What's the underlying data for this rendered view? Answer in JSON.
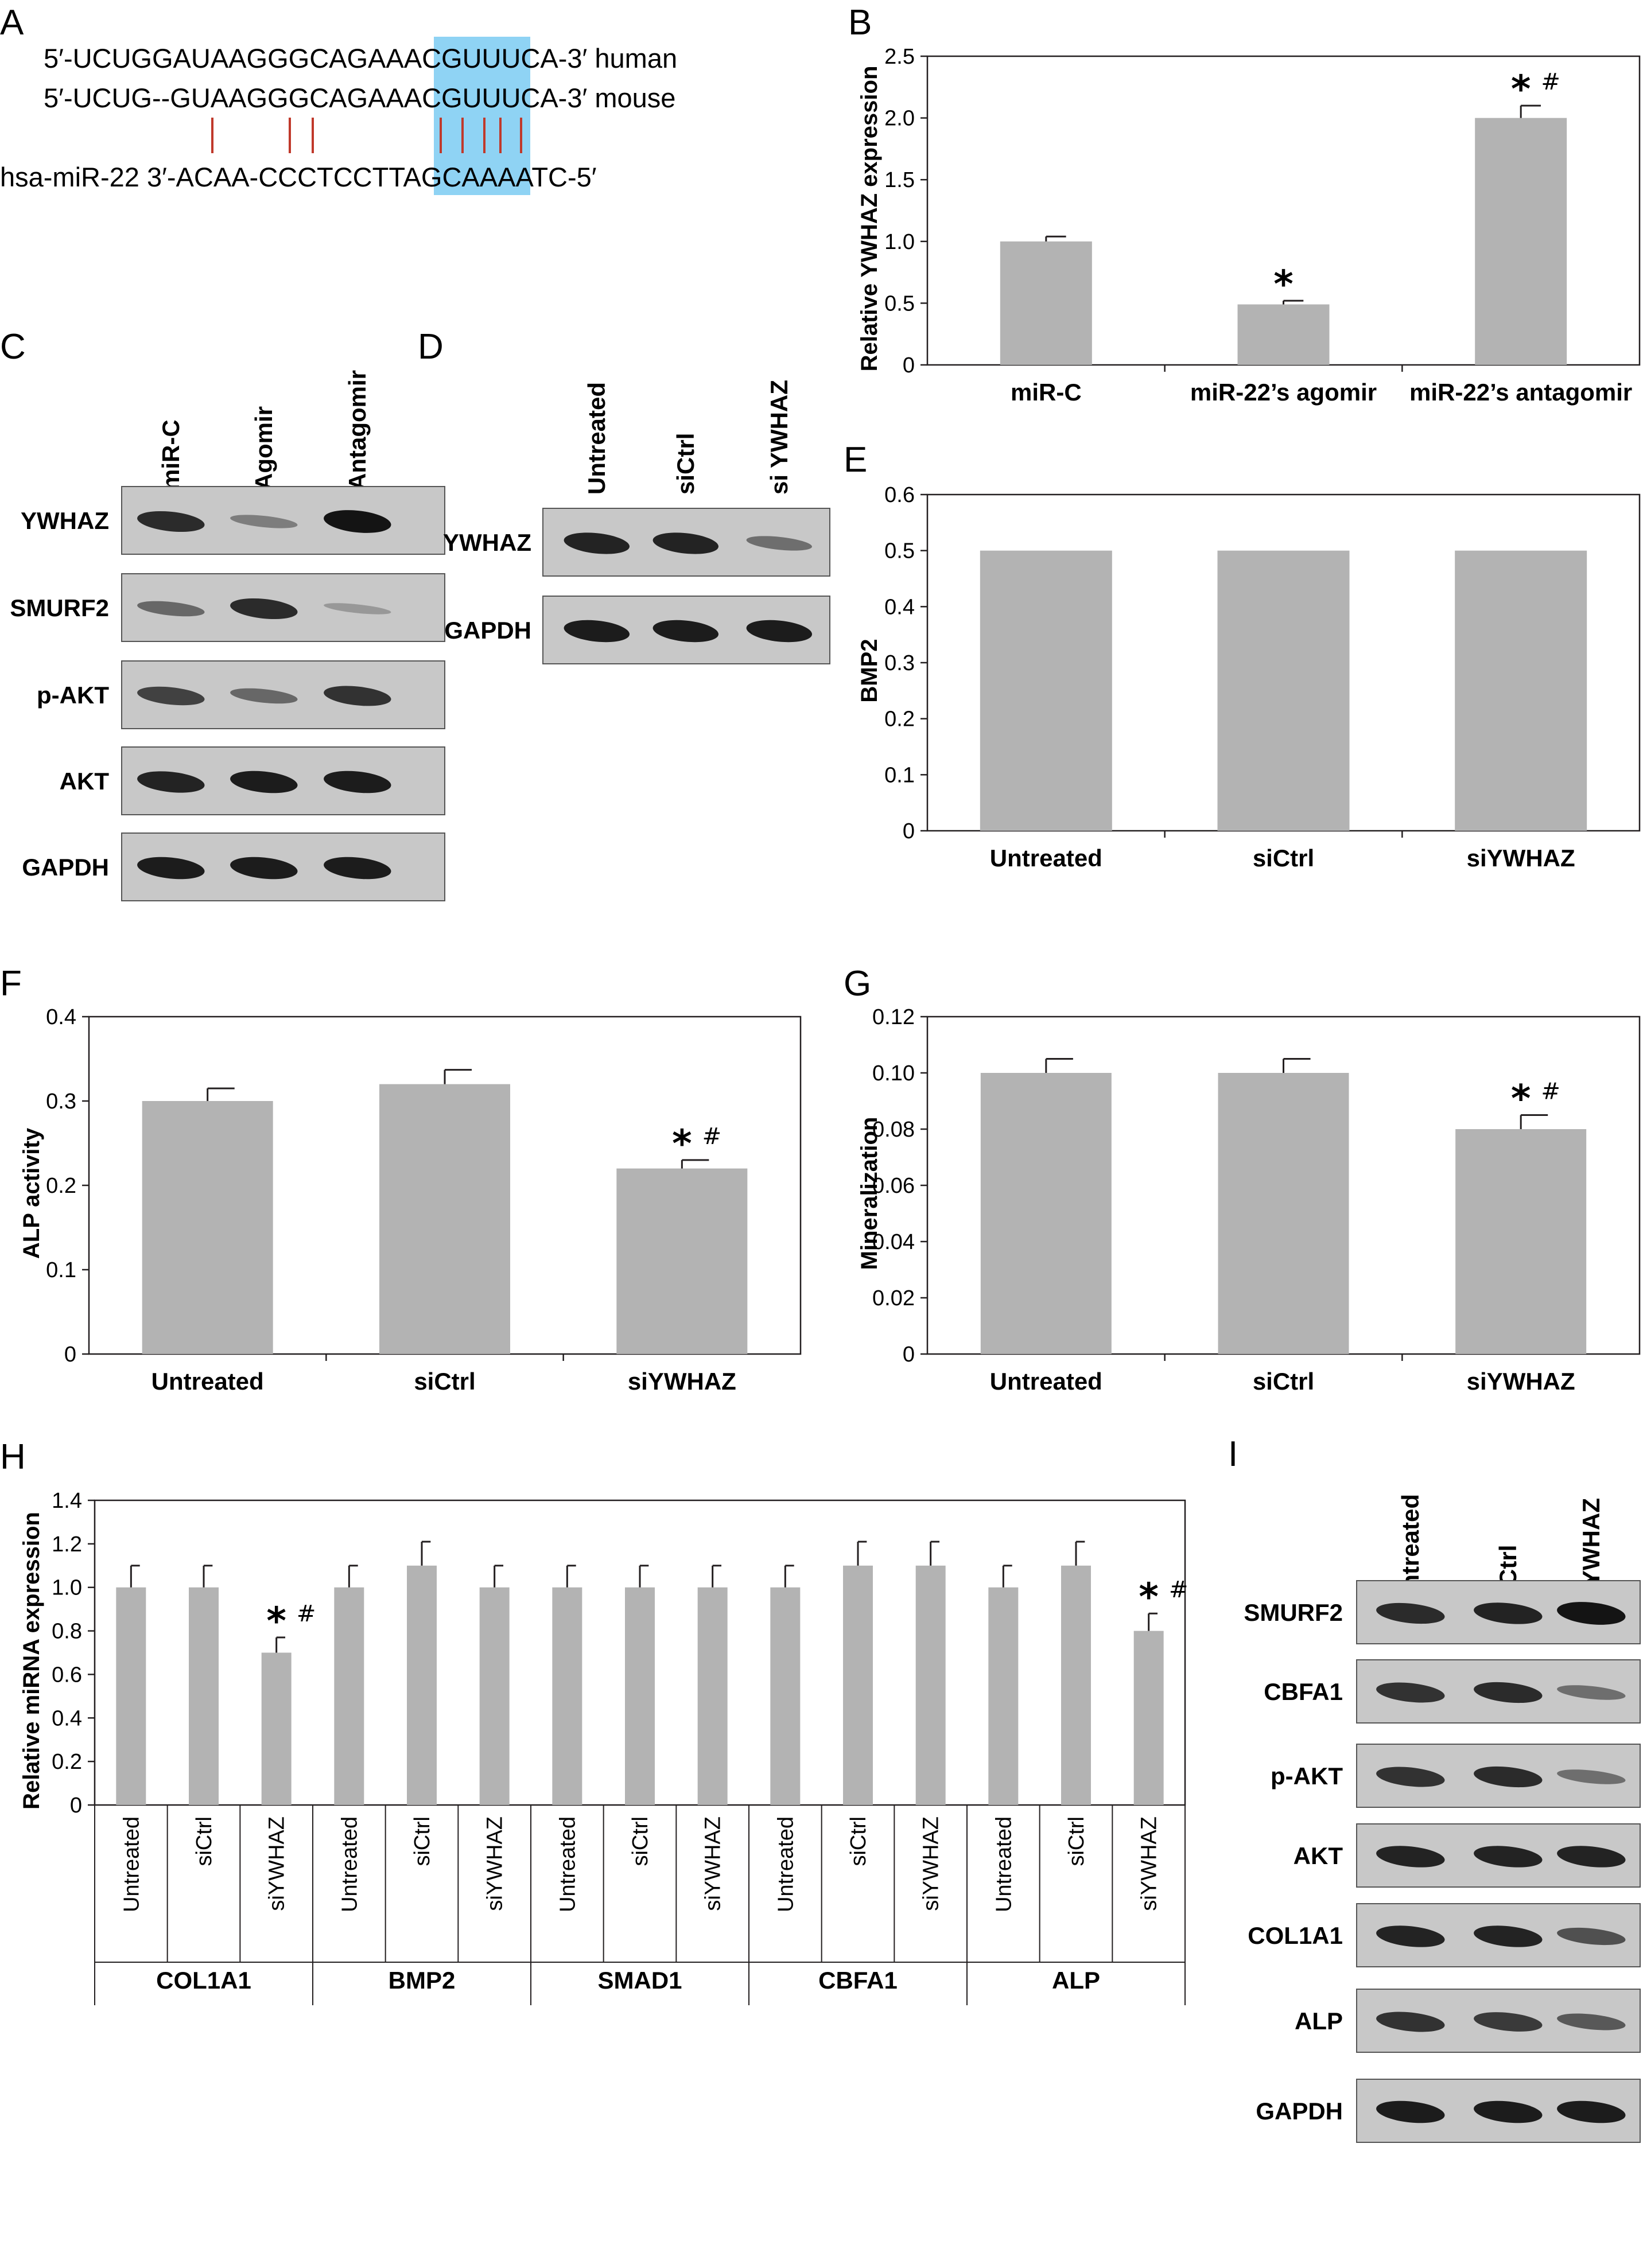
{
  "panels": {
    "A": {
      "letter": "A",
      "human": {
        "pre": "5′-UCUGGAUAAGGGCAGAAA",
        "hl": "CGUUU",
        "post": "CA-3′ human"
      },
      "mouse": {
        "pre": "5′-UCUG--GUAAGGGCAGAAA",
        "hl": "CGUUU",
        "post": "CA-3′ mouse"
      },
      "mir": {
        "pre": "hsa-miR-22 3′-ACAA-CCCTCCTTA",
        "hl": "GCAAA",
        "post": "ATC-5′"
      },
      "highlight_color": "#8fd3f4",
      "pair_line_color": "#c0392b"
    },
    "B": "B",
    "C": "C",
    "D": "D",
    "E": "E",
    "F": "F",
    "G": "G",
    "H": "H",
    "I": "I"
  },
  "blots": {
    "C": {
      "lanes": [
        "miR-C",
        "Agomir",
        "Antagomir"
      ],
      "rows": [
        {
          "label": "YWHAZ",
          "intensity": [
            0.85,
            0.3,
            1.0
          ]
        },
        {
          "label": "SMURF2",
          "intensity": [
            0.45,
            0.85,
            0.12
          ]
        },
        {
          "label": "p-AKT",
          "intensity": [
            0.7,
            0.45,
            0.8
          ]
        },
        {
          "label": "AKT",
          "intensity": [
            0.9,
            0.95,
            0.95
          ]
        },
        {
          "label": "GAPDH",
          "intensity": [
            0.95,
            0.95,
            0.95
          ]
        }
      ]
    },
    "D": {
      "lanes": [
        "Untreated",
        "siCtrl",
        "si YWHAZ"
      ],
      "rows": [
        {
          "label": "YWHAZ",
          "intensity": [
            0.9,
            0.9,
            0.4
          ]
        },
        {
          "label": "GAPDH",
          "intensity": [
            0.95,
            0.95,
            0.95
          ]
        }
      ]
    },
    "I": {
      "lanes": [
        "Untreated",
        "siCtrl",
        "siYWHAZ"
      ],
      "rows": [
        {
          "label": "SMURF2",
          "intensity": [
            0.85,
            0.9,
            1.0
          ]
        },
        {
          "label": "CBFA1",
          "intensity": [
            0.8,
            0.85,
            0.4
          ]
        },
        {
          "label": "p-AKT",
          "intensity": [
            0.8,
            0.85,
            0.4
          ]
        },
        {
          "label": "AKT",
          "intensity": [
            0.9,
            0.9,
            0.9
          ]
        },
        {
          "label": "COL1A1",
          "intensity": [
            0.9,
            0.9,
            0.6
          ]
        },
        {
          "label": "ALP",
          "intensity": [
            0.8,
            0.75,
            0.55
          ]
        },
        {
          "label": "GAPDH",
          "intensity": [
            0.95,
            0.95,
            0.95
          ]
        }
      ]
    }
  },
  "chart_data": [
    {
      "panel": "B",
      "type": "bar",
      "categories": [
        "miR-C",
        "miR-22’s agomir",
        "miR-22’s antagomir"
      ],
      "values": [
        1.0,
        0.49,
        2.0
      ],
      "errors": [
        0.04,
        0.03,
        0.1
      ],
      "annotations": [
        "",
        "*",
        "* #"
      ],
      "yticks": [
        "0",
        "0.5",
        "1.0",
        "1.5",
        "2.0",
        "2.5"
      ],
      "ylabel": "Relative YWHAZ expression",
      "ylim": [
        0,
        2.5
      ],
      "bar_color": "#b3b3b3"
    },
    {
      "panel": "E",
      "type": "bar",
      "categories": [
        "Untreated",
        "siCtrl",
        "siYWHAZ"
      ],
      "values": [
        0.5,
        0.5,
        0.5
      ],
      "errors": [
        0,
        0,
        0
      ],
      "annotations": [
        "",
        "",
        ""
      ],
      "yticks": [
        "0",
        "0.1",
        "0.2",
        "0.3",
        "0.4",
        "0.5",
        "0.6"
      ],
      "ylabel": "BMP2",
      "ylim": [
        0,
        0.6
      ],
      "bar_color": "#b3b3b3"
    },
    {
      "panel": "F",
      "type": "bar",
      "categories": [
        "Untreated",
        "siCtrl",
        "siYWHAZ"
      ],
      "values": [
        0.3,
        0.32,
        0.22
      ],
      "errors": [
        0.015,
        0.017,
        0.01
      ],
      "annotations": [
        "",
        "",
        "* #"
      ],
      "yticks": [
        "0",
        "0.1",
        "0.2",
        "0.3",
        "0.4"
      ],
      "ylabel": "ALP activity",
      "ylim": [
        0,
        0.4
      ],
      "bar_color": "#b3b3b3"
    },
    {
      "panel": "G",
      "type": "bar",
      "categories": [
        "Untreated",
        "siCtrl",
        "siYWHAZ"
      ],
      "values": [
        0.1,
        0.1,
        0.08
      ],
      "errors": [
        0.005,
        0.005,
        0.005
      ],
      "annotations": [
        "",
        "",
        "* #"
      ],
      "yticks": [
        "0",
        "0.02",
        "0.04",
        "0.06",
        "0.08",
        "0.10",
        "0.12"
      ],
      "ylabel": "Mineralization",
      "ylim": [
        0,
        0.12
      ],
      "bar_color": "#b3b3b3"
    },
    {
      "panel": "H",
      "type": "bar",
      "groups": [
        "COL1A1",
        "BMP2",
        "SMAD1",
        "CBFA1",
        "ALP"
      ],
      "conditions": [
        "Untreated",
        "siCtrl",
        "siYWHAZ"
      ],
      "values": [
        [
          1.0,
          1.0,
          0.7
        ],
        [
          1.0,
          1.1,
          1.0
        ],
        [
          1.0,
          1.0,
          1.0
        ],
        [
          1.0,
          1.1,
          1.1
        ],
        [
          1.0,
          1.1,
          0.8
        ]
      ],
      "errors": [
        [
          0.1,
          0.1,
          0.07
        ],
        [
          0.1,
          0.11,
          0.1
        ],
        [
          0.1,
          0.1,
          0.1
        ],
        [
          0.1,
          0.11,
          0.11
        ],
        [
          0.1,
          0.11,
          0.08
        ]
      ],
      "annotations": [
        [
          "",
          "",
          "* #"
        ],
        [
          "",
          "",
          ""
        ],
        [
          "",
          "",
          ""
        ],
        [
          "",
          "",
          ""
        ],
        [
          "",
          "",
          "* #"
        ]
      ],
      "yticks": [
        "0",
        "0.2",
        "0.4",
        "0.6",
        "0.8",
        "1.0",
        "1.2",
        "1.4"
      ],
      "ylabel": "Relative miRNA expression",
      "ylim": [
        0,
        1.4
      ],
      "bar_color": "#b3b3b3"
    }
  ]
}
